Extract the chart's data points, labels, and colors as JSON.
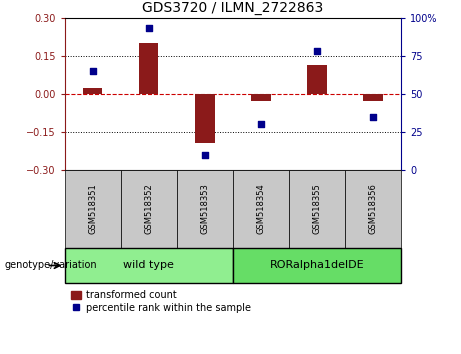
{
  "title": "GDS3720 / ILMN_2722863",
  "samples": [
    "GSM518351",
    "GSM518352",
    "GSM518353",
    "GSM518354",
    "GSM518355",
    "GSM518356"
  ],
  "red_bars": [
    0.022,
    0.2,
    -0.195,
    -0.028,
    0.115,
    -0.028
  ],
  "blue_dots": [
    65,
    93,
    10,
    30,
    78,
    35
  ],
  "ylim_left": [
    -0.3,
    0.3
  ],
  "ylim_right": [
    0,
    100
  ],
  "yticks_left": [
    -0.3,
    -0.15,
    0,
    0.15,
    0.3
  ],
  "yticks_right": [
    0,
    25,
    50,
    75,
    100
  ],
  "groups": [
    {
      "label": "wild type",
      "indices": [
        0,
        1,
        2
      ],
      "color": "#90EE90"
    },
    {
      "label": "RORalpha1delDE",
      "indices": [
        3,
        4,
        5
      ],
      "color": "#66DD66"
    }
  ],
  "red_color": "#8B1A1A",
  "blue_color": "#00008B",
  "bar_width": 0.35,
  "hline_color": "#CC0000",
  "background_color": "white",
  "legend_red_label": "transformed count",
  "legend_blue_label": "percentile rank within the sample",
  "genotype_label": "genotype/variation",
  "title_fontsize": 10,
  "tick_fontsize": 7,
  "sample_fontsize": 6,
  "group_fontsize": 8,
  "legend_fontsize": 7,
  "genotype_fontsize": 7
}
